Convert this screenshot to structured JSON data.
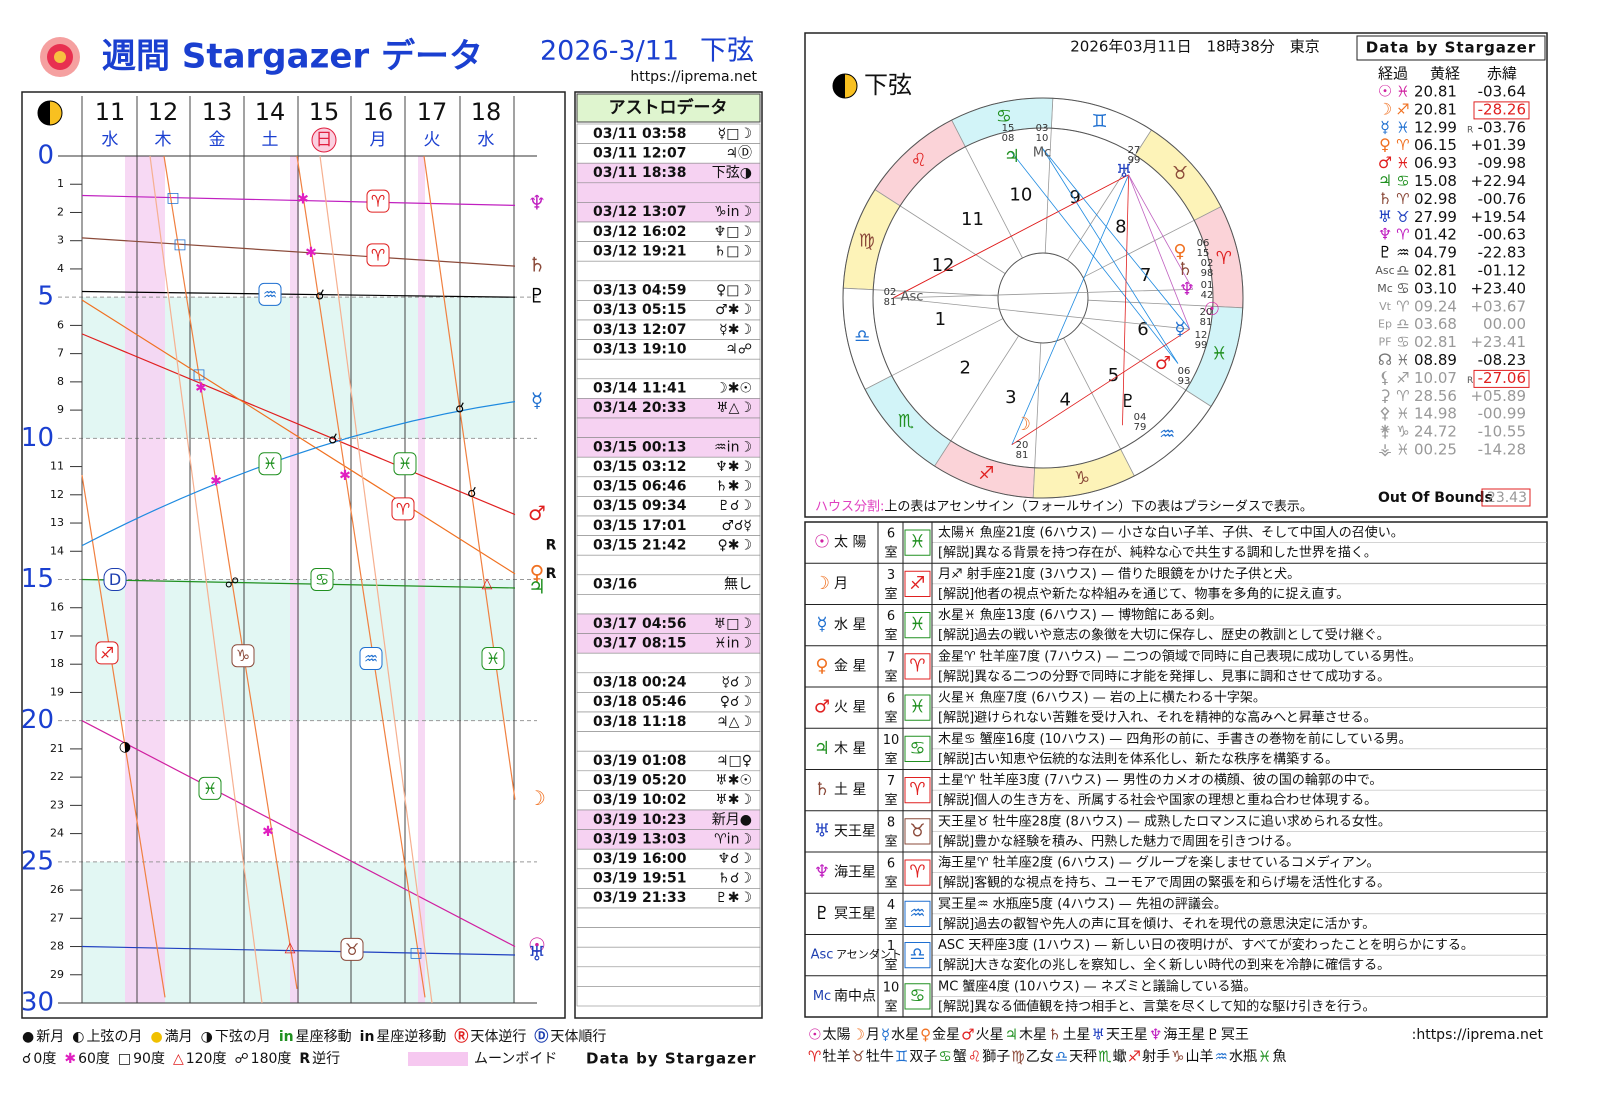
{
  "header": {
    "title": "週間 Stargazer データ",
    "date": "2026-3/11",
    "phase": "下弦",
    "url": "https://iprema.net"
  },
  "weekly": {
    "days": [
      {
        "day": "11",
        "weekday": "水"
      },
      {
        "day": "12",
        "weekday": "木"
      },
      {
        "day": "13",
        "weekday": "金"
      },
      {
        "day": "14",
        "weekday": "土"
      },
      {
        "day": "15",
        "weekday": "日",
        "highlight": true
      },
      {
        "day": "16",
        "weekday": "月"
      },
      {
        "day": "17",
        "weekday": "火"
      },
      {
        "day": "18",
        "weekday": "水"
      }
    ],
    "ylim": [
      0,
      30
    ],
    "yticks": [
      0,
      1,
      2,
      3,
      4,
      5,
      6,
      7,
      8,
      9,
      10,
      11,
      12,
      13,
      14,
      15,
      16,
      17,
      18,
      19,
      20,
      21,
      22,
      23,
      24,
      25,
      26,
      27,
      28,
      29,
      30
    ],
    "right_glyphs": [
      {
        "g": "♆",
        "color": "#c020c0"
      },
      {
        "g": "♄",
        "color": "#8b4a3a"
      },
      {
        "g": "♇",
        "color": "#000000"
      },
      {
        "g": "☿",
        "color": "#1e6fd0"
      },
      {
        "g": "♂",
        "color": "#e02020"
      },
      {
        "g": "♀",
        "color": "#f07020"
      },
      {
        "g": "♃",
        "color": "#209020"
      },
      {
        "g": "☽",
        "color": "#f07020"
      },
      {
        "g": "☉",
        "color": "#d020a0"
      },
      {
        "g": "♅",
        "color": "#2040c0"
      }
    ],
    "retro": [
      "R",
      "R"
    ],
    "markers": [
      {
        "g": "□",
        "color": "#1e6fd0"
      },
      {
        "g": "□",
        "color": "#1e6fd0"
      },
      {
        "g": "□",
        "color": "#1e6fd0"
      },
      {
        "g": "✱",
        "color": "#e020c0"
      },
      {
        "g": "✱",
        "color": "#e020c0"
      },
      {
        "g": "☌",
        "color": "#000000"
      },
      {
        "g": "✱",
        "color": "#e020c0"
      },
      {
        "g": "☌",
        "color": "#000000"
      },
      {
        "g": "☌",
        "color": "#000000"
      },
      {
        "g": "✱",
        "color": "#e020c0"
      },
      {
        "g": "✱",
        "color": "#e020c0"
      },
      {
        "g": "☌",
        "color": "#000000"
      },
      {
        "g": "☍",
        "color": "#000000"
      },
      {
        "g": "△",
        "color": "#e02020"
      },
      {
        "g": "◑",
        "color": "#000000"
      },
      {
        "g": "✱",
        "color": "#e020c0"
      },
      {
        "g": "△",
        "color": "#e02020"
      },
      {
        "g": "□",
        "color": "#1e6fd0"
      },
      {
        "g": "♈",
        "color": "#e02020"
      },
      {
        "g": "♈",
        "color": "#e02020"
      },
      {
        "g": "♒",
        "color": "#1e6fd0"
      },
      {
        "g": "♓",
        "color": "#209020"
      },
      {
        "g": "♓",
        "color": "#209020"
      },
      {
        "g": "♈",
        "color": "#e02020"
      },
      {
        "g": "♋",
        "color": "#209020"
      },
      {
        "g": "♐",
        "color": "#e02020"
      },
      {
        "g": "♑",
        "color": "#8b4a3a"
      },
      {
        "g": "♒",
        "color": "#1e6fd0"
      },
      {
        "g": "♓",
        "color": "#209020"
      },
      {
        "g": "♓",
        "color": "#209020"
      },
      {
        "g": "♉",
        "color": "#8b4a3a"
      },
      {
        "g": "D",
        "color": "#1e3fb0"
      }
    ]
  },
  "astro": {
    "title": "アストロデータ",
    "groups": [
      {
        "rows": [
          {
            "time": "03/11 03:58",
            "aspect": "☿□☽"
          },
          {
            "time": "03/11 12:07",
            "aspect": "♃Ⓓ"
          },
          {
            "time": "03/11 18:38",
            "aspect": "下弦◑",
            "highlight": true
          }
        ],
        "highlight_gap": true
      },
      {
        "rows": [
          {
            "time": "03/12 13:07",
            "aspect": "♑in☽",
            "highlight": true
          },
          {
            "time": "03/12 16:02",
            "aspect": "♆□☽"
          },
          {
            "time": "03/12 19:21",
            "aspect": "♄□☽"
          }
        ]
      },
      {
        "rows": [
          {
            "time": "03/13 04:59",
            "aspect": "♀□☽"
          },
          {
            "time": "03/13 05:15",
            "aspect": "♂✱☽"
          },
          {
            "time": "03/13 12:07",
            "aspect": "☿✱☽"
          },
          {
            "time": "03/13 19:10",
            "aspect": "♃☍"
          }
        ]
      },
      {
        "rows": [
          {
            "time": "03/14 11:41",
            "aspect": "☽✱☉"
          },
          {
            "time": "03/14 20:33",
            "aspect": "♅△☽",
            "highlight": true
          }
        ],
        "highlight_gap": true
      },
      {
        "rows": [
          {
            "time": "03/15 00:13",
            "aspect": "♒in☽",
            "highlight": true
          },
          {
            "time": "03/15 03:12",
            "aspect": "♆✱☽"
          },
          {
            "time": "03/15 06:46",
            "aspect": "♄✱☽"
          },
          {
            "time": "03/15 09:34",
            "aspect": "♇☌☽"
          },
          {
            "time": "03/15 17:01",
            "aspect": "♂☌☿"
          },
          {
            "time": "03/15 21:42",
            "aspect": "♀✱☽"
          }
        ]
      },
      {
        "rows": [
          {
            "time": "03/16",
            "aspect": "無し"
          }
        ]
      },
      {
        "rows": [
          {
            "time": "03/17 04:56",
            "aspect": "♅□☽",
            "highlight": true
          },
          {
            "time": "03/17 08:15",
            "aspect": "♓in☽",
            "highlight": true
          }
        ]
      },
      {
        "rows": [
          {
            "time": "03/18 00:24",
            "aspect": "☿☌☽"
          },
          {
            "time": "03/18 05:46",
            "aspect": "♀☌☽"
          },
          {
            "time": "03/18 11:18",
            "aspect": "♃△☽"
          }
        ]
      },
      {
        "rows": [
          {
            "time": "03/19 01:08",
            "aspect": "♃□♀"
          },
          {
            "time": "03/19 05:20",
            "aspect": "♅✱☉"
          },
          {
            "time": "03/19 10:02",
            "aspect": "♅✱☽"
          },
          {
            "time": "03/19 10:23",
            "aspect": "新月●",
            "highlight": true
          },
          {
            "time": "03/19 13:03",
            "aspect": "♈in☽",
            "highlight": true
          },
          {
            "time": "03/19 16:00",
            "aspect": "♆☌☽"
          },
          {
            "time": "03/19 19:51",
            "aspect": "♄☌☽"
          },
          {
            "time": "03/19 21:33",
            "aspect": "♇✱☽"
          }
        ]
      }
    ]
  },
  "legend_left": {
    "line1": [
      {
        "icon": "●",
        "text": "新月"
      },
      {
        "icon": "◐",
        "text": "上弦の月"
      },
      {
        "icon": "●",
        "text": "満月",
        "color": "#f0c000"
      },
      {
        "icon": "◑",
        "text": "下弦の月"
      },
      {
        "icon": "in",
        "text": "星座移動",
        "color": "#209020"
      },
      {
        "icon": "in",
        "text": "星座逆移動"
      },
      {
        "icon": "Ⓡ",
        "text": "天体逆行",
        "color": "#e02020"
      },
      {
        "icon": "Ⓓ",
        "text": "天体順行",
        "color": "#1e3fb0"
      }
    ],
    "line2": [
      {
        "icon": "☌",
        "text": "0度"
      },
      {
        "icon": "✱",
        "text": "60度",
        "color": "#e020c0"
      },
      {
        "icon": "□",
        "text": "90度"
      },
      {
        "icon": "△",
        "text": "120度",
        "color": "#e02020"
      },
      {
        "icon": "☍",
        "text": "180度"
      },
      {
        "icon": "R",
        "text": "逆行"
      }
    ],
    "void": "ムーンボイド",
    "credit": "Data by Stargazer"
  },
  "natal": {
    "datetime": "2026年03月11日　18時38分　東京",
    "credit": "Data by Stargazer",
    "phase": "下弦",
    "columns": [
      "経過",
      "黄経",
      "赤緯"
    ],
    "planets": [
      {
        "glyph": "☉",
        "sign": "♓",
        "lon": "20.81",
        "dec": "-03.64",
        "color": "#d020a0"
      },
      {
        "glyph": "☽",
        "sign": "♐",
        "lon": "20.81",
        "dec": "-28.26",
        "color": "#f07020",
        "oob": true
      },
      {
        "glyph": "☿",
        "sign": "♓",
        "lon": "12.99",
        "r": "R",
        "dec": "-03.76",
        "color": "#1e6fd0"
      },
      {
        "glyph": "♀",
        "sign": "♈",
        "lon": "06.15",
        "dec": "+01.39",
        "color": "#f07020"
      },
      {
        "glyph": "♂",
        "sign": "♓",
        "lon": "06.93",
        "dec": "-09.98",
        "color": "#e02020"
      },
      {
        "glyph": "♃",
        "sign": "♋",
        "lon": "15.08",
        "dec": "+22.94",
        "color": "#209020"
      },
      {
        "glyph": "♄",
        "sign": "♈",
        "lon": "02.98",
        "dec": "-00.76",
        "color": "#8b4a3a"
      },
      {
        "glyph": "♅",
        "sign": "♉",
        "lon": "27.99",
        "dec": "+19.54",
        "color": "#2040c0"
      },
      {
        "glyph": "♆",
        "sign": "♈",
        "lon": "01.42",
        "dec": "-00.63",
        "color": "#c020c0"
      },
      {
        "glyph": "♇",
        "sign": "♒",
        "lon": "04.79",
        "dec": "-22.83",
        "color": "#000000"
      },
      {
        "glyph": "Asc",
        "sign": "♎",
        "lon": "02.81",
        "dec": "-01.12",
        "color": "#555555"
      },
      {
        "glyph": "Mc",
        "sign": "♋",
        "lon": "03.10",
        "dec": "+23.40",
        "color": "#555555"
      },
      {
        "glyph": "Vt",
        "sign": "♈",
        "lon": "09.24",
        "dec": "+03.67",
        "color": "#999999"
      },
      {
        "glyph": "Ep",
        "sign": "♎",
        "lon": "03.68",
        "dec": "00.00",
        "color": "#999999"
      },
      {
        "glyph": "PF",
        "sign": "♋",
        "lon": "02.81",
        "dec": "+23.41",
        "color": "#999999"
      },
      {
        "glyph": "☊",
        "sign": "♓",
        "lon": "08.89",
        "dec": "-08.23",
        "color": "#777777"
      },
      {
        "glyph": "⚸",
        "sign": "♐",
        "lon": "10.07",
        "r": "R",
        "dec": "-27.06",
        "color": "#999999",
        "oob": true
      },
      {
        "glyph": "⚳",
        "sign": "♈",
        "lon": "28.56",
        "dec": "+05.89",
        "color": "#999999"
      },
      {
        "glyph": "⚴",
        "sign": "♓",
        "lon": "14.98",
        "dec": "-00.99",
        "color": "#999999"
      },
      {
        "glyph": "⚵",
        "sign": "♑",
        "lon": "24.72",
        "dec": "-10.55",
        "color": "#999999"
      },
      {
        "glyph": "⚶",
        "sign": "♓",
        "lon": "00.25",
        "dec": "-14.28",
        "color": "#999999"
      }
    ],
    "signs": [
      "♈",
      "♉",
      "♊",
      "♋",
      "♌",
      "♍",
      "♎",
      "♏",
      "♐",
      "♑",
      "♒",
      "♓"
    ],
    "houses": [
      "1",
      "2",
      "3",
      "4",
      "5",
      "6",
      "7",
      "8",
      "9",
      "10",
      "11",
      "12"
    ],
    "wheel": [
      {
        "glyph": "♃",
        "deg": "15",
        "min": "08",
        "color": "#209020"
      },
      {
        "glyph": "Mc",
        "deg": "03",
        "min": "10",
        "color": "#555555"
      },
      {
        "glyph": "♅",
        "deg": "27",
        "min": "99",
        "color": "#2040c0"
      },
      {
        "glyph": "♀",
        "deg": "06",
        "min": "15",
        "color": "#f07020"
      },
      {
        "glyph": "♄",
        "deg": "02",
        "min": "98",
        "color": "#8b4a3a"
      },
      {
        "glyph": "♆",
        "deg": "01",
        "min": "42",
        "color": "#c020c0"
      },
      {
        "glyph": "☉",
        "deg": "20",
        "min": "81",
        "color": "#d020a0"
      },
      {
        "glyph": "☿",
        "deg": "12",
        "min": "99",
        "color": "#1e6fd0"
      },
      {
        "glyph": "♂",
        "deg": "06",
        "min": "93",
        "color": "#e02020"
      },
      {
        "glyph": "♇",
        "deg": "04",
        "min": "79",
        "color": "#000000"
      },
      {
        "glyph": "☽",
        "deg": "20",
        "min": "81",
        "color": "#f07020"
      },
      {
        "glyph": "Asc",
        "deg": "02",
        "min": "81",
        "color": "#555555"
      }
    ],
    "house_label": "ハウス分割:",
    "house_note": "上の表はアセンサイン（フォールサイン）下の表はプラシーダスで表示。",
    "oob_label": "Out Of Bounds",
    "oob_value": "23.43"
  },
  "readings": [
    {
      "glyph": "☉",
      "name": "太 陽",
      "house": "6",
      "room": "室",
      "sign": "♓",
      "color": "#d020a0",
      "sign_color": "#209020",
      "text": "太陽♓ 魚座21度 (6ハウス) — 小さな白い子羊、子供、そして中国人の召使い。",
      "note": "[解説]異なる背景を持つ存在が、純粋な心で共生する調和した世界を描く。"
    },
    {
      "glyph": "☽",
      "name": "月",
      "house": "3",
      "room": "室",
      "sign": "♐",
      "color": "#f07020",
      "sign_color": "#e02020",
      "text": "月♐ 射手座21度 (3ハウス) — 借りた眼鏡をかけた子供と犬。",
      "note": "[解説]他者の視点や新たな枠組みを通じて、物事を多角的に捉え直す。"
    },
    {
      "glyph": "☿",
      "name": "水 星",
      "house": "6",
      "room": "室",
      "sign": "♓",
      "color": "#1e6fd0",
      "sign_color": "#209020",
      "text": "水星♓ 魚座13度 (6ハウス) — 博物館にある剣。",
      "note": "[解説]過去の戦いや意志の象徴を大切に保存し、歴史の教訓として受け継ぐ。"
    },
    {
      "glyph": "♀",
      "name": "金 星",
      "house": "7",
      "room": "室",
      "sign": "♈",
      "color": "#f07020",
      "sign_color": "#e02020",
      "text": "金星♈ 牡羊座7度 (7ハウス) — 二つの領域で同時に自己表現に成功している男性。",
      "note": "[解説]異なる二つの分野で同時に才能を発揮し、見事に調和させて成功する。"
    },
    {
      "glyph": "♂",
      "name": "火 星",
      "house": "6",
      "room": "室",
      "sign": "♓",
      "color": "#e02020",
      "sign_color": "#209020",
      "text": "火星♓ 魚座7度 (6ハウス) — 岩の上に横たわる十字架。",
      "note": "[解説]避けられない苦難を受け入れ、それを精神的な高みへと昇華させる。"
    },
    {
      "glyph": "♃",
      "name": "木 星",
      "house": "10",
      "room": "室",
      "sign": "♋",
      "color": "#209020",
      "sign_color": "#209020",
      "text": "木星♋ 蟹座16度 (10ハウス) — 四角形の前に、手書きの巻物を前にしている男。",
      "note": "[解説]古い知恵や伝統的な法則を体系化し、新たな秩序を構築する。"
    },
    {
      "glyph": "♄",
      "name": "土 星",
      "house": "7",
      "room": "室",
      "sign": "♈",
      "color": "#8b4a3a",
      "sign_color": "#e02020",
      "text": "土星♈ 牡羊座3度 (7ハウス) — 男性のカメオの横顔、彼の国の輪郭の中で。",
      "note": "[解説]個人の生き方を、所属する社会や国家の理想と重ね合わせ体現する。"
    },
    {
      "glyph": "♅",
      "name": "天王星",
      "house": "8",
      "room": "室",
      "sign": "♉",
      "color": "#2040c0",
      "sign_color": "#8b4a3a",
      "text": "天王星♉ 牡牛座28度 (8ハウス) — 成熟したロマンスに追い求められる女性。",
      "note": "[解説]豊かな経験を積み、円熟した魅力で周囲を引きつける。"
    },
    {
      "glyph": "♆",
      "name": "海王星",
      "house": "6",
      "room": "室",
      "sign": "♈",
      "color": "#c020c0",
      "sign_color": "#e02020",
      "text": "海王星♈ 牡羊座2度 (6ハウス) — グループを楽しませているコメディアン。",
      "note": "[解説]客観的な視点を持ち、ユーモアで周囲の緊張を和らげ場を活性化する。"
    },
    {
      "glyph": "♇",
      "name": "冥王星",
      "house": "4",
      "room": "室",
      "sign": "♒",
      "color": "#000000",
      "sign_color": "#1e6fd0",
      "text": "冥王星♒ 水瓶座5度 (4ハウス) — 先祖の評議会。",
      "note": "[解説]過去の叡智や先人の声に耳を傾け、それを現代の意思決定に活かす。"
    },
    {
      "glyph": "Asc",
      "name": "アセンダント",
      "house": "1",
      "room": "室",
      "sign": "♎",
      "color": "#1e3fb0",
      "sign_color": "#1e6fd0",
      "text": "ASC 天秤座3度 (1ハウス) — 新しい日の夜明けが、すべてが変わったことを明らかにする。",
      "note": "[解説]大きな変化の兆しを察知し、全く新しい時代の到来を冷静に確信する。"
    },
    {
      "glyph": "Mc",
      "name": "南中点",
      "house": "10",
      "room": "室",
      "sign": "♋",
      "color": "#1e3fb0",
      "sign_color": "#209020",
      "text": "MC 蟹座4度 (10ハウス) — ネズミと議論している猫。",
      "note": "[解説]異なる価値観を持つ相手と、言葉を尽くして知的な駆け引きを行う。"
    }
  ],
  "legend_right": {
    "planets": [
      {
        "g": "☉",
        "t": "太陽",
        "color": "#d020a0"
      },
      {
        "g": "☽",
        "t": "月",
        "color": "#f07020"
      },
      {
        "g": "☿",
        "t": "水星",
        "color": "#1e6fd0"
      },
      {
        "g": "♀",
        "t": "金星",
        "color": "#f07020"
      },
      {
        "g": "♂",
        "t": "火星",
        "color": "#e02020"
      },
      {
        "g": "♃",
        "t": "木星",
        "color": "#209020"
      },
      {
        "g": "♄",
        "t": "土星",
        "color": "#8b4a3a"
      },
      {
        "g": "♅",
        "t": "天王星",
        "color": "#2040c0"
      },
      {
        "g": "♆",
        "t": "海王星",
        "color": "#c020c0"
      },
      {
        "g": "♇",
        "t": "冥王",
        "color": "#000000"
      }
    ],
    "url": ":https://iprema.net",
    "signs": [
      {
        "g": "♈",
        "t": "牡羊",
        "color": "#e02020"
      },
      {
        "g": "♉",
        "t": "牡牛",
        "color": "#8b4a3a"
      },
      {
        "g": "♊",
        "t": "双子",
        "color": "#1e6fd0"
      },
      {
        "g": "♋",
        "t": "蟹",
        "color": "#209020"
      },
      {
        "g": "♌",
        "t": "獅子",
        "color": "#e02020"
      },
      {
        "g": "♍",
        "t": "乙女",
        "color": "#8b4a3a"
      },
      {
        "g": "♎",
        "t": "天秤",
        "color": "#1e6fd0"
      },
      {
        "g": "♏",
        "t": "蠍",
        "color": "#209020"
      },
      {
        "g": "♐",
        "t": "射手",
        "color": "#e02020"
      },
      {
        "g": "♑",
        "t": "山羊",
        "color": "#8b4a3a"
      },
      {
        "g": "♒",
        "t": "水瓶",
        "color": "#1e6fd0"
      },
      {
        "g": "♓",
        "t": "魚",
        "color": "#209020"
      }
    ]
  }
}
